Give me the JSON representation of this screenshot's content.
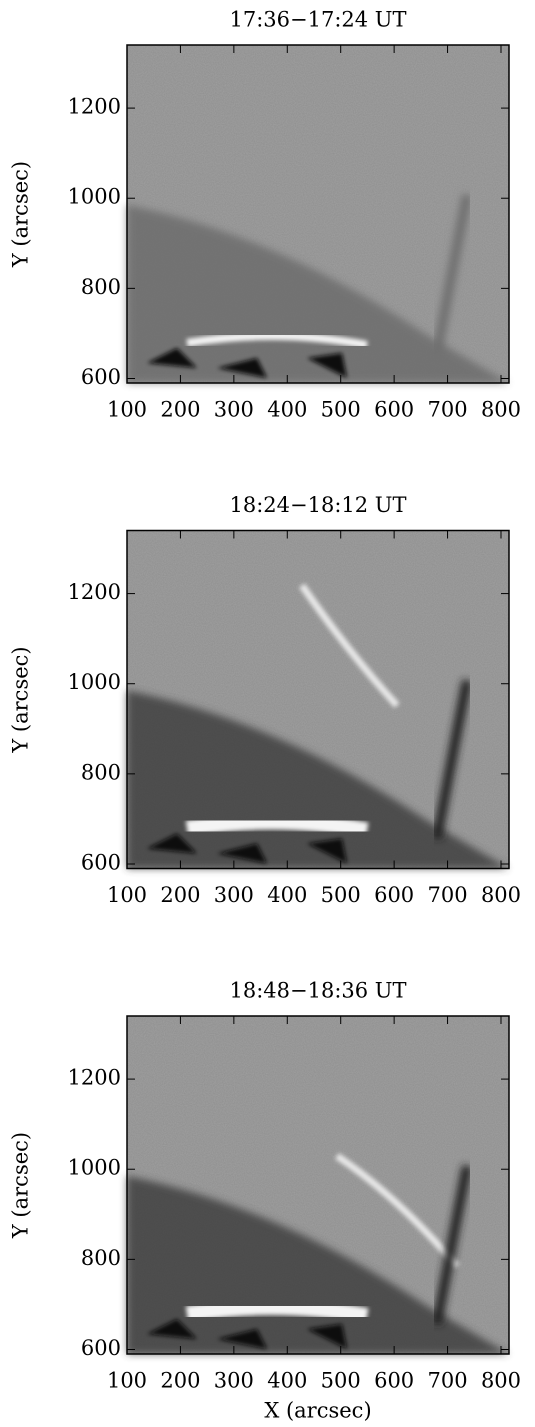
{
  "chart_data": [
    {
      "type": "image",
      "title": "17:36−17:24 UT",
      "ylabel": "Y (arcsec)",
      "xlim": [
        100,
        815
      ],
      "ylim": [
        590,
        1340
      ],
      "xticks": [
        100,
        200,
        300,
        400,
        500,
        600,
        700,
        800
      ],
      "yticks": [
        600,
        800,
        1000,
        1200
      ]
    },
    {
      "type": "image",
      "title": "18:24−18:12 UT",
      "ylabel": "Y (arcsec)",
      "xlim": [
        100,
        815
      ],
      "ylim": [
        590,
        1340
      ],
      "xticks": [
        100,
        200,
        300,
        400,
        500,
        600,
        700,
        800
      ],
      "yticks": [
        600,
        800,
        1000,
        1200
      ]
    },
    {
      "type": "image",
      "title": "18:48−18:36 UT",
      "ylabel": "Y (arcsec)",
      "xlabel": "X (arcsec)",
      "xlim": [
        100,
        815
      ],
      "ylim": [
        590,
        1340
      ],
      "xticks": [
        100,
        200,
        300,
        400,
        500,
        600,
        700,
        800
      ],
      "yticks": [
        600,
        800,
        1000,
        1200
      ]
    }
  ]
}
